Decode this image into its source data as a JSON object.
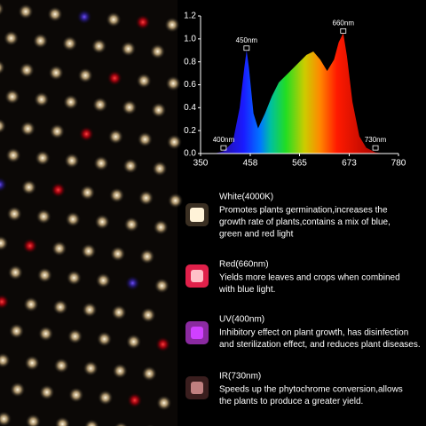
{
  "chart_data": {
    "type": "area",
    "x": [
      380,
      400,
      420,
      435,
      445,
      450,
      455,
      465,
      475,
      490,
      505,
      520,
      540,
      560,
      580,
      595,
      610,
      625,
      640,
      650,
      660,
      668,
      680,
      695,
      710,
      730,
      750
    ],
    "values": [
      0,
      0.02,
      0.1,
      0.4,
      0.75,
      0.9,
      0.75,
      0.35,
      0.22,
      0.35,
      0.5,
      0.62,
      0.7,
      0.78,
      0.86,
      0.89,
      0.82,
      0.72,
      0.82,
      0.97,
      1.05,
      0.85,
      0.45,
      0.15,
      0.05,
      0.01,
      0
    ],
    "xlim": [
      350,
      780
    ],
    "xticks": [
      350,
      458,
      565,
      673,
      780
    ],
    "ylim": [
      0,
      1.2
    ],
    "yticks": [
      {
        "value": 0,
        "label": "0.0"
      },
      0.2,
      0.4,
      0.6,
      0.8,
      {
        "value": 1,
        "label": "1.0"
      },
      1.2
    ],
    "annotations": [
      {
        "text": "400nm",
        "x": 400,
        "y": 0.03
      },
      {
        "text": "450nm",
        "x": 450,
        "y": 0.9
      },
      {
        "text": "660nm",
        "x": 660,
        "y": 1.05
      },
      {
        "text": "730nm",
        "x": 730,
        "y": 0.03
      }
    ]
  },
  "features": [
    {
      "title": "White(4000K)",
      "lines": [
        "Promotes plants germination,increases the",
        "growth rate of plants,contains a mix of blue,",
        "green and red light"
      ]
    },
    {
      "title": "Red(660nm)",
      "lines": [
        "Yields more leaves and crops when combined",
        "with blue light."
      ]
    },
    {
      "title": "UV(400nm)",
      "lines": [
        "Inhibitory effect on plant growth, has disinfection",
        "and sterilization effect, and reduces plant diseases."
      ]
    },
    {
      "title": "IR(730nm)",
      "lines": [
        "Speeds up the phytochrome conversion,allows",
        "the plants to produce a greater yield."
      ]
    }
  ]
}
